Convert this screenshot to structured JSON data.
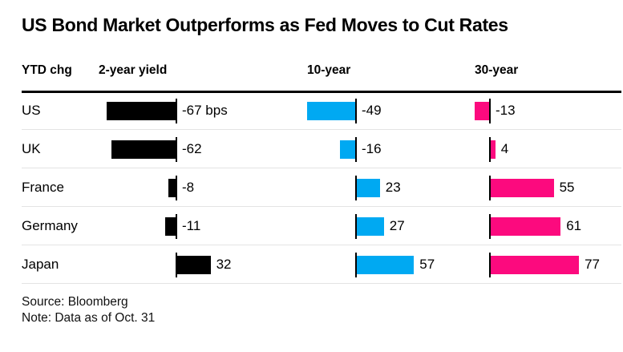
{
  "title": "US Bond Market Outperforms as Fed Moves to Cut Rates",
  "columns": [
    "YTD chg",
    "2-year yield",
    "10-year",
    "30-year"
  ],
  "colors": {
    "two_year_bar": "#000000",
    "ten_year_bar": "#00a9f2",
    "thirty_year_bar": "#fc0a7e",
    "rule": "#000000",
    "separator": "#e4e4e4"
  },
  "chart_data": {
    "type": "bar",
    "orientation": "horizontal",
    "title": "US Bond Market Outperforms as Fed Moves to Cut Rates",
    "unit": "bps",
    "value_axis_label": "YTD chg",
    "grid": false,
    "baseline": 0,
    "legend_position": "column-headers",
    "categories": [
      "US",
      "UK",
      "France",
      "Germany",
      "Japan"
    ],
    "series": [
      {
        "name": "2-year yield",
        "color": "#000000",
        "values": [
          -67,
          -62,
          -8,
          -11,
          32
        ],
        "labels": [
          "-67 bps",
          "-62",
          "-8",
          "-11",
          "32"
        ]
      },
      {
        "name": "10-year",
        "color": "#00a9f2",
        "values": [
          -49,
          -16,
          23,
          27,
          57
        ],
        "labels": [
          "-49",
          "-16",
          "23",
          "27",
          "57"
        ]
      },
      {
        "name": "30-year",
        "color": "#fc0a7e",
        "values": [
          -13,
          4,
          55,
          61,
          77
        ],
        "labels": [
          "-13",
          "4",
          "55",
          "61",
          "77"
        ]
      }
    ]
  },
  "footer": {
    "source": "Source: Bloomberg",
    "note": "Note: Data as of Oct. 31"
  }
}
